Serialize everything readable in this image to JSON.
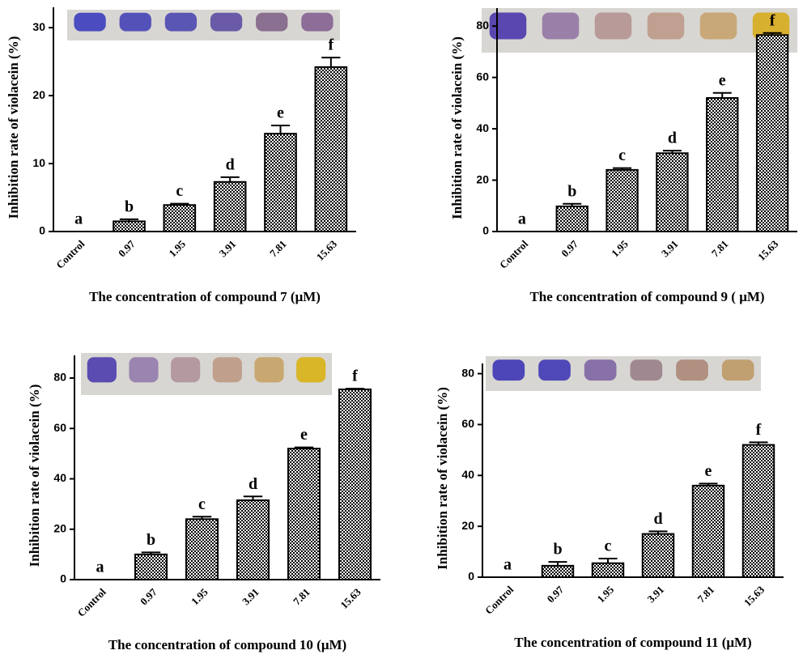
{
  "chart_data": [
    {
      "type": "bar",
      "y_label": "Inhibition rate of violacein  (%)",
      "x_label": "The concentration of  compound 7 (μM)",
      "categories": [
        "Control",
        "0.97",
        "1.95",
        "3.91",
        "7.81",
        "15.63"
      ],
      "values": [
        0,
        1.5,
        3.9,
        7.3,
        14.4,
        24.2
      ],
      "errors": [
        0,
        0.3,
        0.2,
        0.7,
        1.2,
        1.4
      ],
      "annotations": [
        "a",
        "b",
        "c",
        "d",
        "e",
        "f"
      ],
      "ylim": [
        0,
        33
      ],
      "yticks": [
        0,
        10,
        20,
        30
      ]
    },
    {
      "type": "bar",
      "y_label": "Inhibition rate of violacein  (%)",
      "x_label": "The concentration of  compound 9 ( μM)",
      "categories": [
        "Control",
        "0.97",
        "1.95",
        "3.91",
        "7.81",
        "15.63"
      ],
      "values": [
        0,
        9.8,
        24,
        30.5,
        52,
        76.5
      ],
      "errors": [
        0,
        1,
        0.7,
        1,
        2,
        0.8
      ],
      "annotations": [
        "a",
        "b",
        "c",
        "d",
        "e",
        "f"
      ],
      "ylim": [
        0,
        87
      ],
      "yticks": [
        0,
        20,
        40,
        60,
        80
      ]
    },
    {
      "type": "bar",
      "y_label": "Inhibition rate of violacein  (%)",
      "x_label": "The concentration of  compound  10 (μM)",
      "categories": [
        "Control",
        "0.97",
        "1.95",
        "3.91",
        "7.81",
        "15.63"
      ],
      "values": [
        0,
        10,
        24,
        31.5,
        52,
        75.5
      ],
      "errors": [
        0,
        0.8,
        1,
        1.5,
        0.5,
        0.3
      ],
      "annotations": [
        "a",
        "b",
        "c",
        "d",
        "e",
        "f"
      ],
      "ylim": [
        0,
        89
      ],
      "yticks": [
        0,
        20,
        40,
        60,
        80
      ]
    },
    {
      "type": "bar",
      "y_label": "Inhibition rate of violacein  (%)",
      "x_label": "The concentration of  compound 11 (μM)",
      "categories": [
        "Control",
        "0.97",
        "1.95",
        "3.91",
        "7.81",
        "15.63"
      ],
      "values": [
        0,
        4.5,
        5.5,
        17,
        36,
        52
      ],
      "errors": [
        0,
        1.5,
        1.8,
        1,
        0.8,
        1
      ],
      "annotations": [
        "a",
        "b",
        "c",
        "d",
        "e",
        "f"
      ],
      "ylim": [
        0,
        84
      ],
      "yticks": [
        0,
        20,
        40,
        60,
        80
      ]
    }
  ]
}
